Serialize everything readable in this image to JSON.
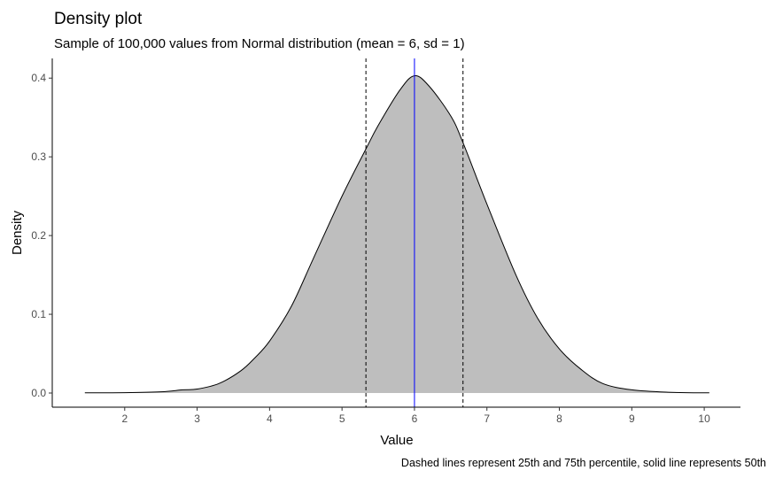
{
  "chart_data": {
    "type": "area",
    "title": "Density plot",
    "subtitle": "Sample of 100,000 values from Normal distribution (mean = 6, sd = 1)",
    "xlabel": "Value",
    "ylabel": "Density",
    "caption": "Dashed lines represent 25th and 75th percentile, solid line represents 50th",
    "xlim": [
      1.0,
      10.5
    ],
    "ylim": [
      -0.018,
      0.425
    ],
    "x_ticks": [
      2,
      3,
      4,
      5,
      6,
      7,
      8,
      9,
      10
    ],
    "y_ticks": [
      0.0,
      0.1,
      0.2,
      0.3,
      0.4
    ],
    "y_tick_labels": [
      "0.0",
      "0.1",
      "0.2",
      "0.3",
      "0.4"
    ],
    "grid": false,
    "fill_color": "#bebebe",
    "outline_color": "#000000",
    "density": {
      "x": [
        1.45,
        2.0,
        2.5,
        2.8,
        3.0,
        3.3,
        3.6,
        3.8,
        4.0,
        4.3,
        4.6,
        5.0,
        5.33,
        5.5,
        5.8,
        6.0,
        6.2,
        6.5,
        6.67,
        7.0,
        7.4,
        7.7,
        8.0,
        8.3,
        8.6,
        9.0,
        9.5,
        10.07
      ],
      "y": [
        0.0002,
        0.0004,
        0.0015,
        0.004,
        0.005,
        0.012,
        0.028,
        0.045,
        0.066,
        0.11,
        0.17,
        0.25,
        0.31,
        0.34,
        0.385,
        0.403,
        0.39,
        0.352,
        0.318,
        0.24,
        0.15,
        0.095,
        0.056,
        0.03,
        0.012,
        0.004,
        0.001,
        0.0002
      ]
    },
    "percentiles": [
      {
        "label": "25th",
        "value": 5.33,
        "style": "dashed",
        "color": "#000000"
      },
      {
        "label": "50th",
        "value": 6.0,
        "style": "solid",
        "color": "#0000ff"
      },
      {
        "label": "75th",
        "value": 6.67,
        "style": "dashed",
        "color": "#000000"
      }
    ]
  }
}
